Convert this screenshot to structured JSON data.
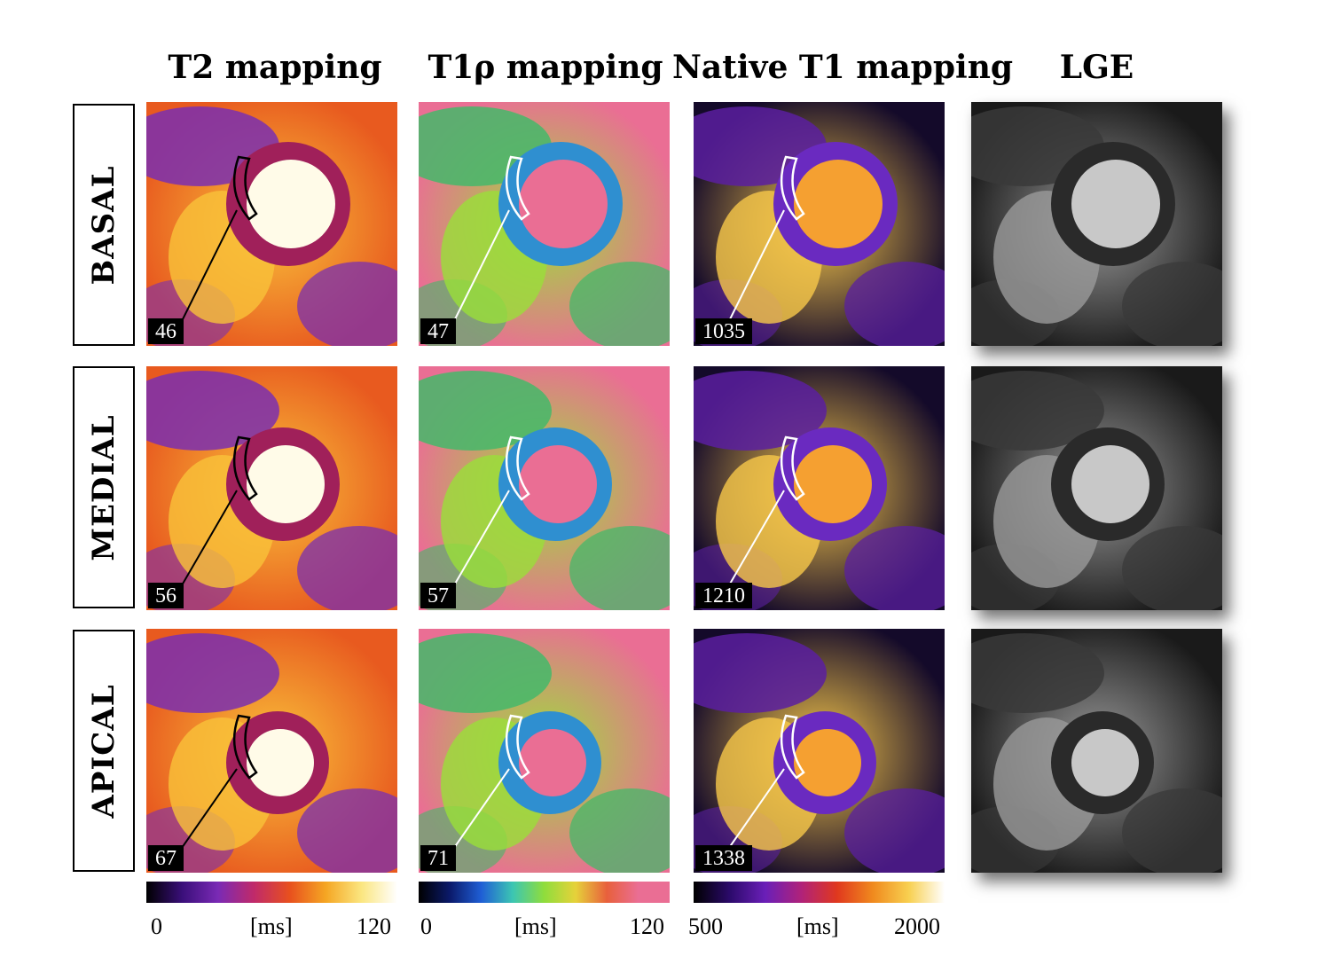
{
  "columns": [
    {
      "title": "T2 mapping",
      "colorbar": {
        "min": "0",
        "unit": "[ms]",
        "max": "120",
        "stops": [
          "#000000",
          "#3a0f7a",
          "#7a2ab5",
          "#c02a6a",
          "#e8501e",
          "#f5a623",
          "#fbe680",
          "#ffffff"
        ]
      }
    },
    {
      "title": "T1ρ mapping",
      "colorbar": {
        "min": "0",
        "unit": "[ms]",
        "max": "120",
        "stops": [
          "#000000",
          "#0b1a6b",
          "#1f5fd6",
          "#3cc6b2",
          "#8fdd3c",
          "#e6d23a",
          "#e8603c",
          "#ea6e94",
          "#ea6e94"
        ]
      }
    },
    {
      "title": "Native T1 mapping",
      "colorbar": {
        "min": "500",
        "unit": "[ms]",
        "max": "2000",
        "stops": [
          "#000000",
          "#2b0a6a",
          "#6a1fb8",
          "#b0227a",
          "#e0381e",
          "#f08a1e",
          "#f8d050",
          "#ffffff"
        ]
      }
    },
    {
      "title": "LGE"
    }
  ],
  "rows": [
    {
      "label": "BASAL",
      "values": [
        "46",
        "47",
        "1035"
      ]
    },
    {
      "label": "MEDIAL",
      "values": [
        "56",
        "57",
        "1210"
      ]
    },
    {
      "label": "APICAL",
      "values": [
        "67",
        "71",
        "1338"
      ]
    }
  ],
  "palettes": {
    "t2": {
      "bg": "#e85a1f",
      "tissue": "#7a2fb0",
      "myo": "#a0205a",
      "blood": "#fffbe8",
      "bright": "#f9c23a",
      "roi": "#000000",
      "line": "#000000"
    },
    "t1rho": {
      "bg": "#ea6e94",
      "tissue": "#44b86a",
      "myo": "#2f8fd0",
      "blood": "#ea6e94",
      "bright": "#9adf3a",
      "roi": "#ffffff",
      "line": "#ffffff"
    },
    "t1": {
      "bg": "#140a2a",
      "tissue": "#5a1fa0",
      "myo": "#6a2ac0",
      "blood": "#f5a031",
      "bright": "#f7c84a",
      "roi": "#ffffff",
      "line": "#ffffff"
    },
    "lge": {
      "bg": "#1a1a1a",
      "tissue": "#3a3a3a",
      "myo": "#2a2a2a",
      "blood": "#c8c8c8",
      "bright": "#9a9a9a"
    }
  }
}
